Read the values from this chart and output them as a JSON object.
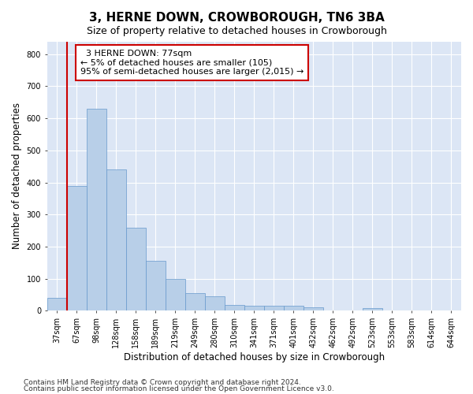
{
  "title": "3, HERNE DOWN, CROWBOROUGH, TN6 3BA",
  "subtitle": "Size of property relative to detached houses in Crowborough",
  "xlabel": "Distribution of detached houses by size in Crowborough",
  "ylabel": "Number of detached properties",
  "footnote1": "Contains HM Land Registry data © Crown copyright and database right 2024.",
  "footnote2": "Contains public sector information licensed under the Open Government Licence v3.0.",
  "annotation_title": "3 HERNE DOWN: 77sqm",
  "annotation_line1": "← 5% of detached houses are smaller (105)",
  "annotation_line2": "95% of semi-detached houses are larger (2,015) →",
  "bin_labels": [
    "37sqm",
    "67sqm",
    "98sqm",
    "128sqm",
    "158sqm",
    "189sqm",
    "219sqm",
    "249sqm",
    "280sqm",
    "310sqm",
    "341sqm",
    "371sqm",
    "401sqm",
    "432sqm",
    "462sqm",
    "492sqm",
    "523sqm",
    "553sqm",
    "583sqm",
    "614sqm",
    "644sqm"
  ],
  "bar_heights": [
    40,
    390,
    630,
    440,
    260,
    155,
    100,
    55,
    45,
    18,
    17,
    17,
    16,
    10,
    0,
    0,
    8,
    0,
    0,
    0,
    0
  ],
  "bar_color": "#b8cfe8",
  "bar_edge_color": "#6699cc",
  "ylim": [
    0,
    840
  ],
  "yticks": [
    0,
    100,
    200,
    300,
    400,
    500,
    600,
    700,
    800
  ],
  "background_color": "#dce6f5",
  "grid_color": "#ffffff",
  "annotation_box_color": "#ffffff",
  "annotation_box_edge_color": "#cc0000",
  "red_line_color": "#cc0000",
  "title_fontsize": 11,
  "subtitle_fontsize": 9,
  "axis_label_fontsize": 8.5,
  "tick_fontsize": 7,
  "annotation_fontsize": 8,
  "footnote_fontsize": 6.5
}
